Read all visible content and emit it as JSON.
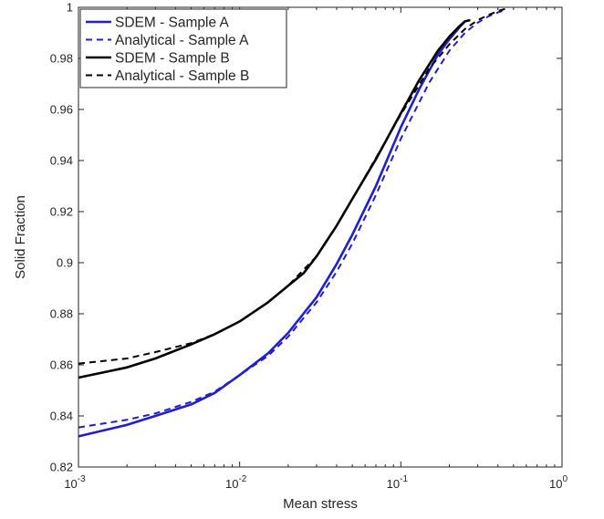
{
  "chart_data": {
    "type": "line",
    "title": "",
    "xlabel": "Mean stress",
    "ylabel": "Solid Fraction",
    "xscale": "log",
    "xlim": [
      0.001,
      1
    ],
    "ylim": [
      0.82,
      1.0
    ],
    "x_ticks": [
      0.001,
      0.01,
      0.1,
      1
    ],
    "x_tick_labels": [
      {
        "base": "10",
        "exp": "-3"
      },
      {
        "base": "10",
        "exp": "-2"
      },
      {
        "base": "10",
        "exp": "-1"
      },
      {
        "base": "10",
        "exp": "0"
      }
    ],
    "y_ticks": [
      0.82,
      0.84,
      0.86,
      0.88,
      0.9,
      0.92,
      0.94,
      0.96,
      0.98,
      1.0
    ],
    "y_tick_labels": [
      "0.82",
      "0.84",
      "0.86",
      "0.88",
      "0.9",
      "0.92",
      "0.94",
      "0.96",
      "0.98",
      "1"
    ],
    "grid": false,
    "legend_position": "top-left",
    "series": [
      {
        "name": "SDEM - Sample A",
        "color": "#1f1fd1",
        "dash": "solid",
        "x": [
          0.001,
          0.002,
          0.003,
          0.005,
          0.007,
          0.01,
          0.015,
          0.02,
          0.03,
          0.04,
          0.05,
          0.07,
          0.1,
          0.13,
          0.17,
          0.2,
          0.23,
          0.25
        ],
        "y": [
          0.832,
          0.8365,
          0.84,
          0.8445,
          0.849,
          0.856,
          0.8645,
          0.8725,
          0.8865,
          0.8995,
          0.911,
          0.93,
          0.953,
          0.968,
          0.9815,
          0.9875,
          0.992,
          0.9945
        ]
      },
      {
        "name": "Analytical - Sample A",
        "color": "#1f1fd1",
        "dash": "dashed",
        "x": [
          0.001,
          0.002,
          0.003,
          0.005,
          0.007,
          0.01,
          0.015,
          0.02,
          0.03,
          0.04,
          0.05,
          0.07,
          0.1,
          0.15,
          0.2,
          0.25,
          0.3,
          0.35,
          0.4,
          0.45
        ],
        "y": [
          0.8355,
          0.8385,
          0.841,
          0.8455,
          0.8495,
          0.856,
          0.8635,
          0.871,
          0.8845,
          0.8965,
          0.9075,
          0.9265,
          0.9485,
          0.9705,
          0.983,
          0.99,
          0.994,
          0.9965,
          0.998,
          0.999
        ]
      },
      {
        "name": "SDEM - Sample B",
        "color": "#000000",
        "dash": "solid",
        "x": [
          0.001,
          0.002,
          0.003,
          0.005,
          0.007,
          0.01,
          0.015,
          0.02,
          0.025,
          0.03,
          0.04,
          0.05,
          0.07,
          0.1,
          0.13,
          0.17,
          0.2,
          0.23,
          0.25,
          0.27
        ],
        "y": [
          0.855,
          0.859,
          0.8625,
          0.868,
          0.872,
          0.877,
          0.8845,
          0.891,
          0.896,
          0.9025,
          0.9145,
          0.925,
          0.9405,
          0.9585,
          0.9715,
          0.983,
          0.9885,
          0.9925,
          0.9945,
          0.995
        ]
      },
      {
        "name": "Analytical - Sample B",
        "color": "#000000",
        "dash": "dashed",
        "x": [
          0.001,
          0.002,
          0.003,
          0.005,
          0.007,
          0.01,
          0.015,
          0.02,
          0.03,
          0.04,
          0.05,
          0.07,
          0.1,
          0.15,
          0.2,
          0.25,
          0.3,
          0.35,
          0.4,
          0.45
        ],
        "y": [
          0.8605,
          0.8625,
          0.865,
          0.8685,
          0.872,
          0.877,
          0.8845,
          0.891,
          0.9025,
          0.9145,
          0.925,
          0.941,
          0.958,
          0.976,
          0.9855,
          0.9915,
          0.995,
          0.997,
          0.9985,
          0.9995
        ]
      }
    ]
  }
}
